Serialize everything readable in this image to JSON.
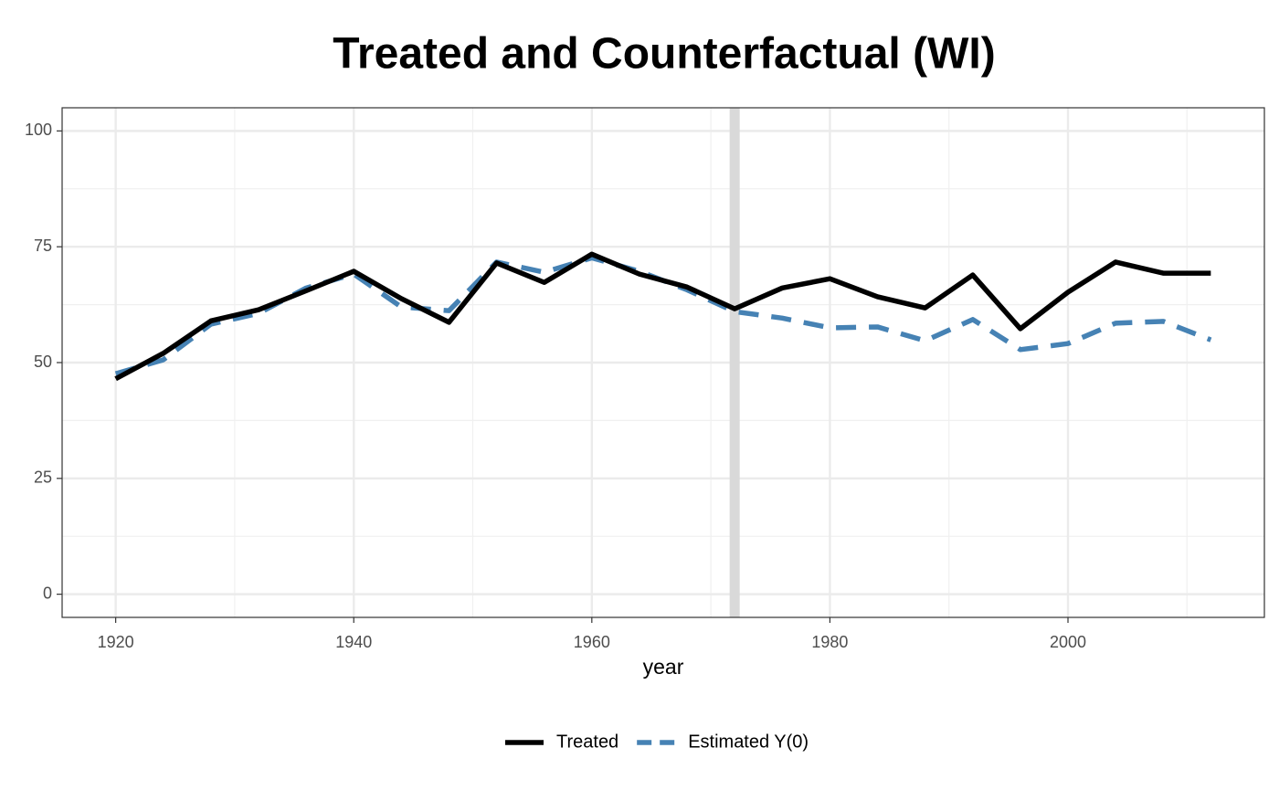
{
  "chart_data": {
    "type": "line",
    "title": "Treated and Counterfactual (WI)",
    "x_label": "year",
    "x": [
      1920,
      1924,
      1928,
      1932,
      1936,
      1940,
      1944,
      1948,
      1952,
      1956,
      1960,
      1964,
      1968,
      1972,
      1976,
      1980,
      1984,
      1988,
      1992,
      1996,
      2000,
      2004,
      2008,
      2012
    ],
    "series": [
      {
        "name": "Treated",
        "color": "#000000",
        "dashed": false,
        "values": [
          46.5,
          52,
          59,
          61.4,
          65.5,
          69.7,
          63.8,
          58.7,
          71.5,
          67.3,
          73.4,
          69.1,
          66.3,
          61.6,
          66.1,
          68.1,
          64.2,
          61.8,
          68.9,
          57.3,
          65.2,
          71.7,
          69.3,
          69.3
        ]
      },
      {
        "name": "Estimated Y(0)",
        "color": "#4682b4",
        "dashed": true,
        "values": [
          47.6,
          50.6,
          58.3,
          60.6,
          66.1,
          69.1,
          62,
          61.2,
          71.7,
          69.5,
          72.6,
          69.7,
          65.7,
          61,
          59.6,
          57.5,
          57.7,
          54.7,
          59.3,
          52.8,
          54.1,
          58.5,
          58.9,
          54.9
        ]
      }
    ],
    "xlim": [
      1915.5,
      2016.5
    ],
    "xticks": [
      1920,
      1940,
      1960,
      1980,
      2000
    ],
    "ylim": [
      -5,
      105
    ],
    "yticks": [
      0,
      25,
      50,
      75,
      100
    ],
    "treatment_year": 1972,
    "grid": true,
    "legend": "bottom"
  }
}
